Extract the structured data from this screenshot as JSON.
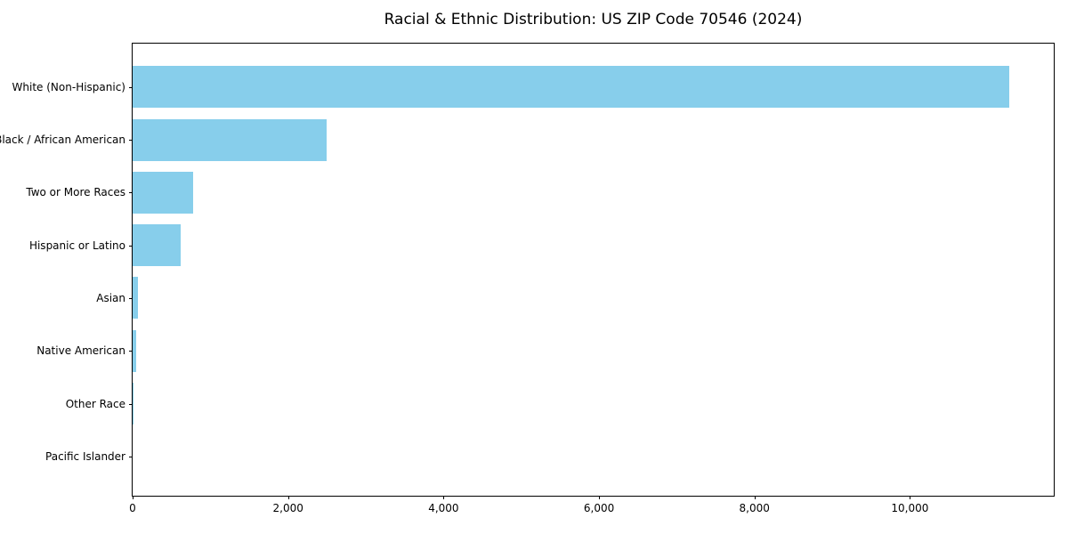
{
  "figure": {
    "background": "#ffffff",
    "spine_color": "#000000",
    "text_color": "#000000"
  },
  "chart_data": {
    "type": "bar",
    "orientation": "horizontal",
    "title": "Racial & Ethnic Distribution: US ZIP Code 70546 (2024)",
    "categories": [
      "White (Non-Hispanic)",
      "Black / African American",
      "Two or More Races",
      "Hispanic or Latino",
      "Asian",
      "Native American",
      "Other Race",
      "Pacific Islander"
    ],
    "values": [
      11280,
      2490,
      780,
      620,
      70,
      45,
      10,
      0
    ],
    "xlabel": "",
    "ylabel": "",
    "xlim": [
      0,
      11850
    ],
    "x_ticks": [
      0,
      2000,
      4000,
      6000,
      8000,
      10000
    ],
    "x_tick_labels": [
      "0",
      "2,000",
      "4,000",
      "6,000",
      "8,000",
      "10,000"
    ],
    "bar_color": "#87ceeb",
    "grid": false,
    "legend": null
  }
}
